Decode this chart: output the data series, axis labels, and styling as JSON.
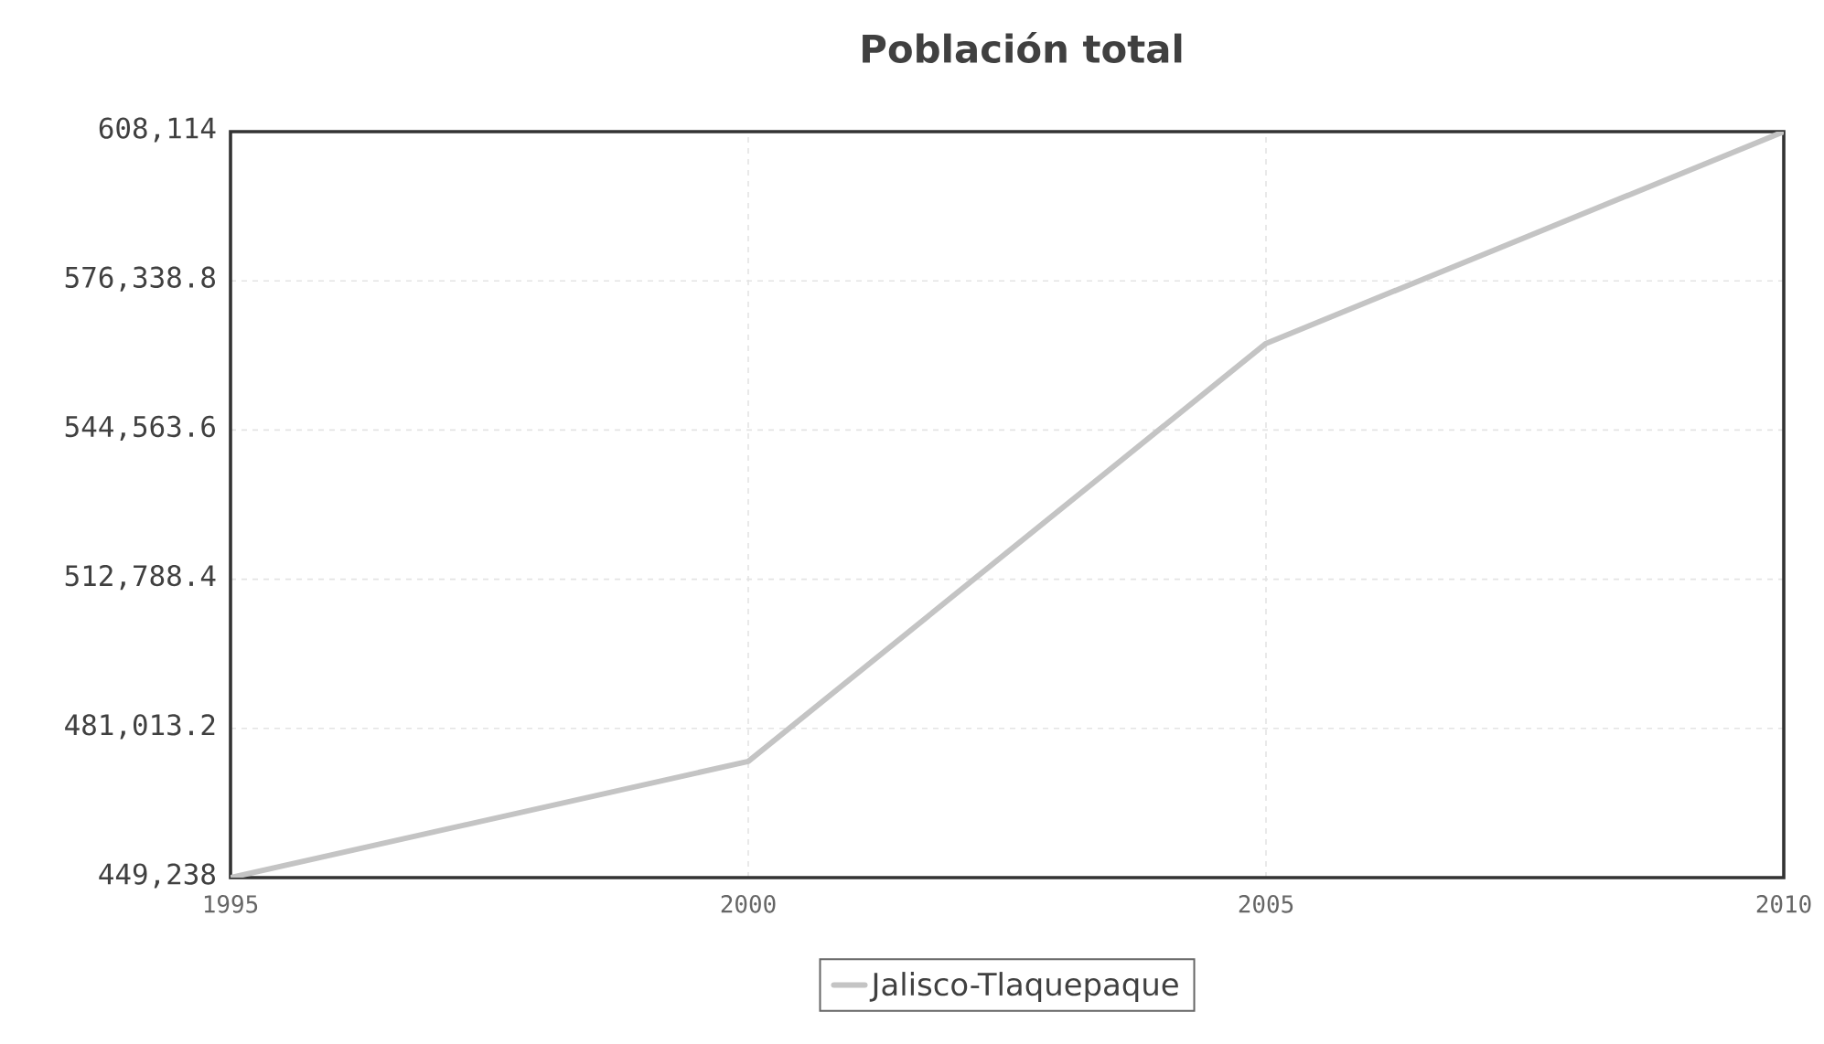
{
  "chart_data": {
    "type": "line",
    "title": "Población total",
    "x": [
      1995,
      2000,
      2005,
      2010
    ],
    "series": [
      {
        "name": "Jalisco-Tlaquepaque",
        "color": "#c4c4c4",
        "values": [
          449238,
          474000,
          563000,
          608114
        ]
      }
    ],
    "xlim": [
      1995,
      2010
    ],
    "xticks": [
      1995,
      2000,
      2005,
      2010
    ],
    "ylim": [
      449238,
      608114
    ],
    "yticks": [
      {
        "value": 449238,
        "label": "449,238"
      },
      {
        "value": 481013.2,
        "label": "481,013.2"
      },
      {
        "value": 512788.4,
        "label": "512,788.4"
      },
      {
        "value": 544563.6,
        "label": "544,563.6"
      },
      {
        "value": 576338.8,
        "label": "576,338.8"
      },
      {
        "value": 608114,
        "label": "608,114"
      }
    ],
    "grid": true,
    "legend": "bottom",
    "line_style": "solid"
  }
}
